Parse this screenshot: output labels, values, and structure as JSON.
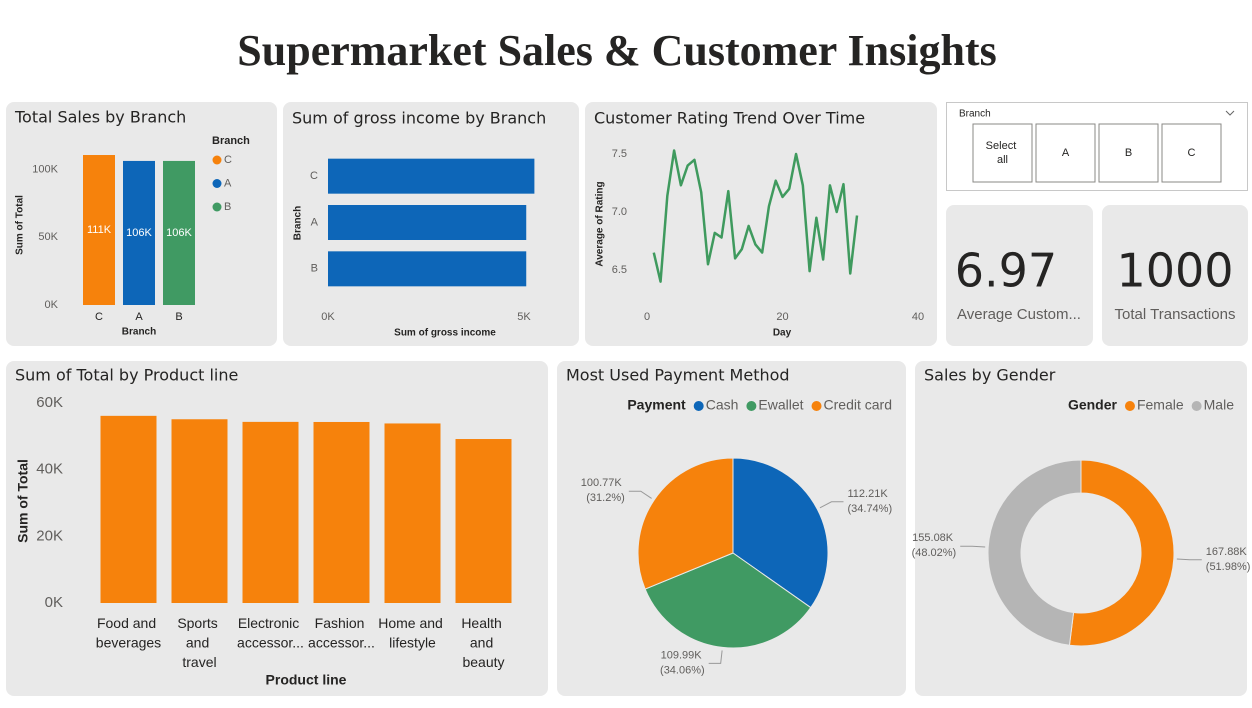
{
  "title": "Supermarket Sales & Customer Insights",
  "slicer": {
    "title": "Branch",
    "options": [
      "Select all",
      "A",
      "B",
      "C"
    ]
  },
  "cards": [
    {
      "value": 6.97,
      "label": "Average Custom..."
    },
    {
      "value": 1000,
      "label": "Total Transactions"
    }
  ],
  "chart_data": [
    {
      "type": "bar",
      "title": "Total Sales by Branch",
      "categories": [
        "C",
        "A",
        "B"
      ],
      "values": [
        110568.71,
        106200.37,
        106197.67
      ],
      "value_labels": [
        "111K",
        "106K",
        "106K"
      ],
      "colors": [
        "#f6820c",
        "#0d66b8",
        "#409a63"
      ],
      "legend_title": "Branch",
      "x_label": "Branch",
      "y_label": "Sum of Total",
      "ylim": [
        0,
        115000
      ],
      "yticks": [
        {
          "value": 0,
          "label": "0K"
        },
        {
          "value": 50000,
          "label": "50K"
        },
        {
          "value": 100000,
          "label": "100K"
        }
      ]
    },
    {
      "type": "bar",
      "orientation": "horizontal",
      "title": "Sum of gross income by Branch",
      "categories": [
        "C",
        "A",
        "B"
      ],
      "values": [
        5265.18,
        5057.16,
        5057.03
      ],
      "color": "#0d66b8",
      "x_label": "Sum of gross income",
      "y_label": "Branch",
      "xlim": [
        0,
        5500
      ],
      "xticks": [
        {
          "value": 0,
          "label": "0K"
        },
        {
          "value": 5000,
          "label": "5K"
        }
      ]
    },
    {
      "type": "line",
      "title": "Customer Rating Trend Over Time",
      "color": "#3f9a5e",
      "x": [
        1,
        2,
        3,
        4,
        5,
        6,
        7,
        8,
        9,
        10,
        11,
        12,
        13,
        14,
        15,
        16,
        17,
        18,
        19,
        20,
        21,
        22,
        23,
        24,
        25,
        26,
        27,
        28,
        29,
        30,
        31
      ],
      "values": [
        6.65,
        6.4,
        7.14,
        7.53,
        7.23,
        7.4,
        7.45,
        7.17,
        6.55,
        6.82,
        6.78,
        7.18,
        6.6,
        6.68,
        6.88,
        6.72,
        6.65,
        7.05,
        7.27,
        7.13,
        7.2,
        7.5,
        7.23,
        6.49,
        6.95,
        6.59,
        7.23,
        7.0,
        7.24,
        6.47,
        6.97
      ],
      "x_label": "Day",
      "y_label": "Average of Rating",
      "xlim": [
        0,
        40
      ],
      "xticks": [
        0,
        20,
        40
      ],
      "ylim": [
        6.3,
        7.6
      ],
      "yticks": [
        6.5,
        {
          "value": 7,
          "label": "7.0"
        },
        7.5
      ]
    },
    {
      "type": "bar",
      "title": "Sum of Total by Product line",
      "categories": [
        "Food and beverages",
        "Sports and travel",
        "Electronic accessor...",
        "Fashion accessor...",
        "Home and lifestyle",
        "Health and beauty"
      ],
      "values": [
        56144.84,
        55122.83,
        54337.53,
        54305.9,
        53861.91,
        49193.74
      ],
      "color": "#f6820c",
      "x_label": "Product line",
      "y_label": "Sum of Total",
      "ylim": [
        0,
        60000
      ],
      "yticks": [
        {
          "value": 0,
          "label": "0K"
        },
        {
          "value": 20000,
          "label": "20K"
        },
        {
          "value": 40000,
          "label": "40K"
        },
        {
          "value": 60000,
          "label": "60K"
        }
      ]
    },
    {
      "type": "pie",
      "title": "Most Used Payment Method",
      "legend_title": "Payment",
      "categories": [
        "Cash",
        "Ewallet",
        "Credit card"
      ],
      "values": [
        112206.57,
        109993.11,
        100767.07
      ],
      "value_labels": [
        "112.21K (34.74%)",
        "109.99K (34.06%)",
        "100.77K (31.2%)"
      ],
      "colors": [
        "#0d66b8",
        "#409a63",
        "#f6820c"
      ]
    },
    {
      "type": "donut",
      "title": "Sales by Gender",
      "legend_title": "Gender",
      "categories": [
        "Female",
        "Male"
      ],
      "values": [
        167882.93,
        155083.82
      ],
      "value_labels": [
        "167.88K (51.98%)",
        "155.08K (48.02%)"
      ],
      "colors": [
        "#f6820c",
        "#b5b5b5"
      ]
    }
  ]
}
